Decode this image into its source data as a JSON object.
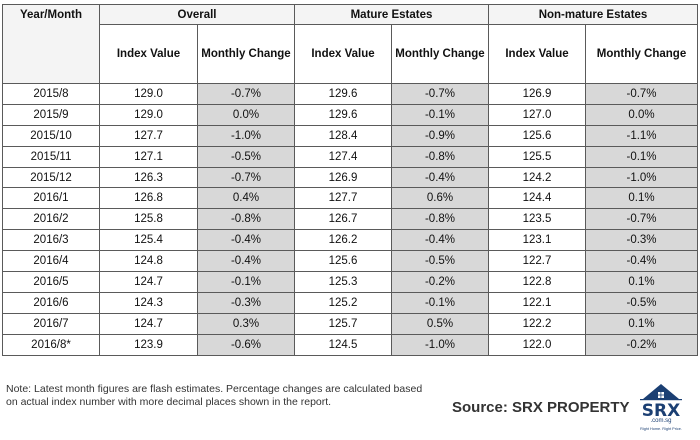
{
  "headers": {
    "year_month": "Year/Month",
    "groups": [
      "Overall",
      "Mature Estates",
      "Non-mature Estates"
    ],
    "index_value": "Index Value",
    "monthly_change": "Monthly Change"
  },
  "rows": [
    {
      "period": "2015/8",
      "overall_index": "129.0",
      "overall_change": "-0.7%",
      "mature_index": "129.6",
      "mature_change": "-0.7%",
      "nonmature_index": "126.9",
      "nonmature_change": "-0.7%"
    },
    {
      "period": "2015/9",
      "overall_index": "129.0",
      "overall_change": "0.0%",
      "mature_index": "129.6",
      "mature_change": "-0.1%",
      "nonmature_index": "127.0",
      "nonmature_change": "0.0%"
    },
    {
      "period": "2015/10",
      "overall_index": "127.7",
      "overall_change": "-1.0%",
      "mature_index": "128.4",
      "mature_change": "-0.9%",
      "nonmature_index": "125.6",
      "nonmature_change": "-1.1%"
    },
    {
      "period": "2015/11",
      "overall_index": "127.1",
      "overall_change": "-0.5%",
      "mature_index": "127.4",
      "mature_change": "-0.8%",
      "nonmature_index": "125.5",
      "nonmature_change": "-0.1%"
    },
    {
      "period": "2015/12",
      "overall_index": "126.3",
      "overall_change": "-0.7%",
      "mature_index": "126.9",
      "mature_change": "-0.4%",
      "nonmature_index": "124.2",
      "nonmature_change": "-1.0%"
    },
    {
      "period": "2016/1",
      "overall_index": "126.8",
      "overall_change": "0.4%",
      "mature_index": "127.7",
      "mature_change": "0.6%",
      "nonmature_index": "124.4",
      "nonmature_change": "0.1%"
    },
    {
      "period": "2016/2",
      "overall_index": "125.8",
      "overall_change": "-0.8%",
      "mature_index": "126.7",
      "mature_change": "-0.8%",
      "nonmature_index": "123.5",
      "nonmature_change": "-0.7%"
    },
    {
      "period": "2016/3",
      "overall_index": "125.4",
      "overall_change": "-0.4%",
      "mature_index": "126.2",
      "mature_change": "-0.4%",
      "nonmature_index": "123.1",
      "nonmature_change": "-0.3%"
    },
    {
      "period": "2016/4",
      "overall_index": "124.8",
      "overall_change": "-0.4%",
      "mature_index": "125.6",
      "mature_change": "-0.5%",
      "nonmature_index": "122.7",
      "nonmature_change": "-0.4%"
    },
    {
      "period": "2016/5",
      "overall_index": "124.7",
      "overall_change": "-0.1%",
      "mature_index": "125.3",
      "mature_change": "-0.2%",
      "nonmature_index": "122.8",
      "nonmature_change": "0.1%"
    },
    {
      "period": "2016/6",
      "overall_index": "124.3",
      "overall_change": "-0.3%",
      "mature_index": "125.2",
      "mature_change": "-0.1%",
      "nonmature_index": "122.1",
      "nonmature_change": "-0.5%"
    },
    {
      "period": "2016/7",
      "overall_index": "124.7",
      "overall_change": "0.3%",
      "mature_index": "125.7",
      "mature_change": "0.5%",
      "nonmature_index": "122.2",
      "nonmature_change": "0.1%"
    },
    {
      "period": "2016/8*",
      "overall_index": "123.9",
      "overall_change": "-0.6%",
      "mature_index": "124.5",
      "mature_change": "-1.0%",
      "nonmature_index": "122.0",
      "nonmature_change": "-0.2%"
    }
  ],
  "note": "Note: Latest month figures are flash estimates. Percentage changes are calculated based on actual index number with more decimal places shown in the report.",
  "source": "Source:  SRX PROPERTY",
  "logo": {
    "name": "SRX",
    "domain": ".com.sg",
    "tagline": "Right Home. Right Price."
  },
  "colors": {
    "change_fill": "#d8d8d8",
    "logo_blue": "#1b3f73"
  }
}
